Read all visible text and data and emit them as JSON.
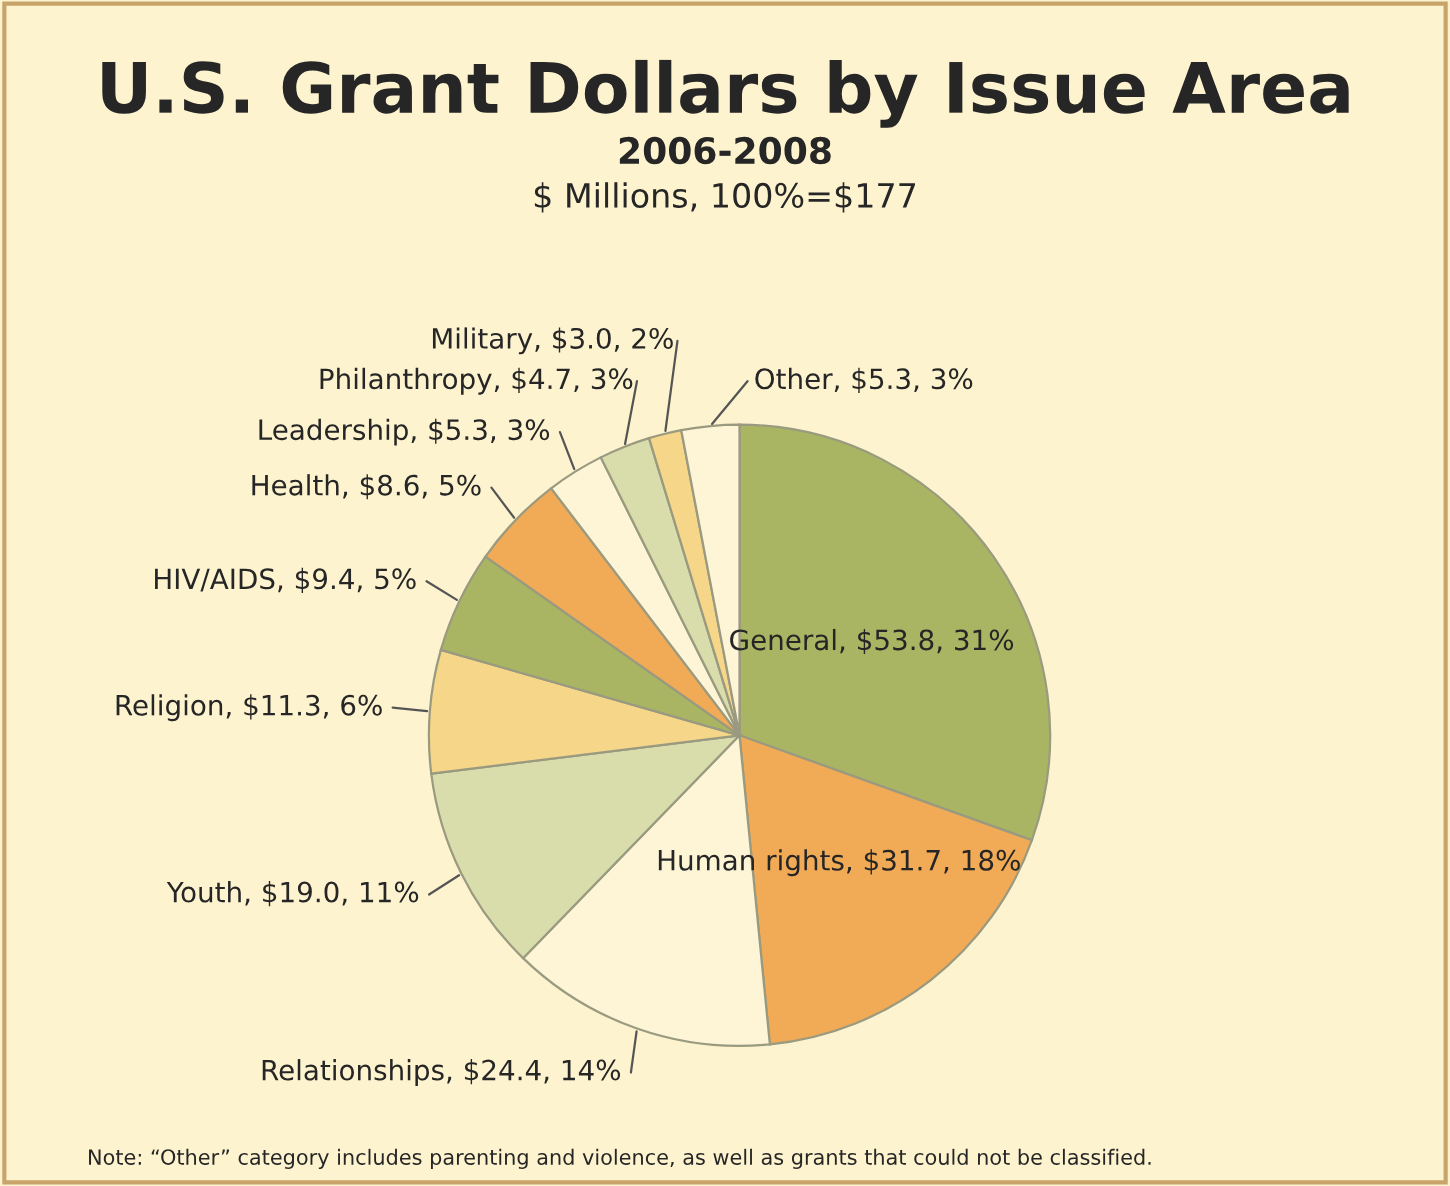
{
  "chart_data": {
    "type": "pie",
    "title": "U.S. Grant Dollars by Issue Area",
    "subtitle": "2006-2008",
    "categories": [
      "General",
      "Human rights",
      "Relationships",
      "Youth",
      "Religion",
      "HIV/AIDS",
      "Health",
      "Leadership",
      "Philanthropy",
      "Military",
      "Other"
    ],
    "values": [
      53.8,
      31.7,
      24.4,
      19.0,
      11.3,
      9.4,
      8.6,
      5.3,
      4.7,
      3.0,
      5.3
    ],
    "colors": [
      "#a9b562",
      "#f1aa55",
      "#fdf5d6",
      "#d9dcab",
      "#f6d688",
      "#a9b562",
      "#f1aa55",
      "#fdf5d6",
      "#d9dcab",
      "#f6d688",
      "#fdf5d6"
    ],
    "value_labels": [
      "$53.8, 31%",
      "$31.7, 18%",
      "$24.4, 14%",
      "$19.0, 11%",
      "$11.3, 6%",
      "$9.4, 5%",
      "$8.6, 5%",
      "$5.3, 3%",
      "$4.7, 3%",
      "$3.0, 2%",
      "$5.3, 3%"
    ],
    "annotations": [
      "$ Millions, 100%=$177",
      "Note: “Other” category includes parenting and violence, as well as grants that could not be classified."
    ]
  }
}
